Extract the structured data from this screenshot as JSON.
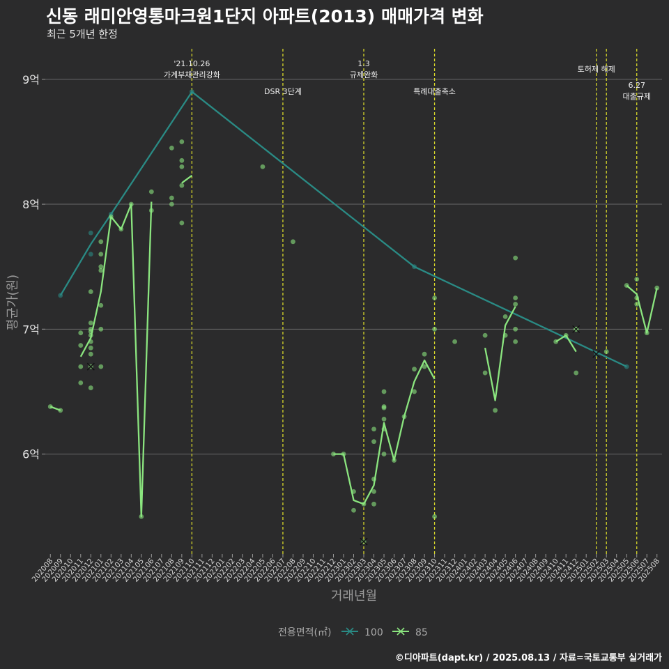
{
  "header": {
    "title": "신동 래미안영통마크원1단지 아파트(2013) 매매가격 변화",
    "subtitle": "최근 5개년 한정"
  },
  "caption": "©디아파트(dapt.kr) / 2025.08.13 / 자료=국토교통부 실거래가",
  "colors": {
    "background": "#2b2b2c",
    "series_100": "#2a8b85",
    "series_85": "#8be57f",
    "event_line": "#d7d72a",
    "grid": "#6a6a6a"
  },
  "chart_data": {
    "type": "line",
    "xlabel": "거래년월",
    "ylabel": "평균가(원)",
    "ylim": [
      5.2,
      9.3
    ],
    "yticks": [
      {
        "value": 6,
        "label": "6억"
      },
      {
        "value": 7,
        "label": "7억"
      },
      {
        "value": 8,
        "label": "8억"
      },
      {
        "value": 9,
        "label": "9억"
      }
    ],
    "x_categories": [
      "202008",
      "202009",
      "202010",
      "202011",
      "202012",
      "202101",
      "202102",
      "202103",
      "202104",
      "202105",
      "202106",
      "202107",
      "202108",
      "202109",
      "202110",
      "202111",
      "202112",
      "202201",
      "202202",
      "202203",
      "202204",
      "202205",
      "202206",
      "202207",
      "202208",
      "202209",
      "202210",
      "202211",
      "202212",
      "202301",
      "202302",
      "202303",
      "202304",
      "202305",
      "202306",
      "202307",
      "202308",
      "202309",
      "202310",
      "202311",
      "202312",
      "202401",
      "202402",
      "202403",
      "202404",
      "202405",
      "202406",
      "202407",
      "202408",
      "202409",
      "202410",
      "202411",
      "202412",
      "202501",
      "202502",
      "202503",
      "202504",
      "202505",
      "202506",
      "202507",
      "202508"
    ],
    "legend": {
      "title": "전용면적(㎡)",
      "position": "bottom",
      "entries": [
        "100",
        "85"
      ]
    },
    "series": [
      {
        "name": "100",
        "line": [
          [
            "202009",
            7.27
          ],
          [
            "202012",
            7.68
          ],
          [
            "202102",
            7.92
          ],
          [
            "202110",
            8.9
          ],
          [
            "202308",
            7.5
          ],
          [
            "202411",
            6.93
          ],
          [
            "202505",
            6.7
          ]
        ],
        "points": [
          [
            "202009",
            7.27
          ],
          [
            "202012",
            7.77
          ],
          [
            "202012",
            7.6
          ],
          [
            "202102",
            7.92
          ],
          [
            "202110",
            8.9
          ],
          [
            "202308",
            7.5
          ],
          [
            "202505",
            6.7
          ]
        ],
        "cancelled": [
          [
            "202502",
            6.8
          ]
        ]
      },
      {
        "name": "85",
        "segments": [
          [
            [
              "202008",
              6.38
            ],
            [
              "202009",
              6.35
            ]
          ],
          [
            [
              "202011",
              6.78
            ],
            [
              "202012",
              6.93
            ],
            [
              "202101",
              7.3
            ],
            [
              "202102",
              7.9
            ],
            [
              "202103",
              7.8
            ],
            [
              "202104",
              8.0
            ],
            [
              "202105",
              5.5
            ],
            [
              "202106",
              8.02
            ]
          ],
          [
            [
              "202109",
              8.17
            ],
            [
              "202110",
              8.23
            ]
          ],
          [
            [
              "202212",
              6.0
            ],
            [
              "202301",
              6.0
            ],
            [
              "202302",
              5.63
            ],
            [
              "202303",
              5.6
            ],
            [
              "202304",
              5.75
            ],
            [
              "202305",
              6.25
            ],
            [
              "202306",
              5.95
            ],
            [
              "202307",
              6.3
            ],
            [
              "202308",
              6.58
            ],
            [
              "202309",
              6.75
            ],
            [
              "202310",
              6.6
            ]
          ],
          [
            [
              "202403",
              6.85
            ],
            [
              "202404",
              6.43
            ],
            [
              "202405",
              7.03
            ],
            [
              "202406",
              7.18
            ]
          ],
          [
            [
              "202410",
              6.9
            ],
            [
              "202411",
              6.95
            ],
            [
              "202412",
              6.82
            ]
          ],
          [
            [
              "202505",
              7.35
            ],
            [
              "202506",
              7.28
            ],
            [
              "202507",
              6.97
            ],
            [
              "202508",
              7.33
            ]
          ]
        ],
        "points": [
          [
            "202008",
            6.38
          ],
          [
            "202009",
            6.35
          ],
          [
            "202011",
            6.97
          ],
          [
            "202011",
            6.87
          ],
          [
            "202011",
            6.7
          ],
          [
            "202011",
            6.57
          ],
          [
            "202012",
            7.3
          ],
          [
            "202012",
            7.05
          ],
          [
            "202012",
            7.0
          ],
          [
            "202012",
            6.98
          ],
          [
            "202012",
            6.95
          ],
          [
            "202012",
            6.9
          ],
          [
            "202012",
            6.85
          ],
          [
            "202012",
            6.8
          ],
          [
            "202012",
            6.53
          ],
          [
            "202101",
            7.7
          ],
          [
            "202101",
            7.6
          ],
          [
            "202101",
            7.5
          ],
          [
            "202101",
            7.47
          ],
          [
            "202101",
            7.19
          ],
          [
            "202101",
            7.0
          ],
          [
            "202101",
            6.7
          ],
          [
            "202102",
            7.9
          ],
          [
            "202103",
            7.8
          ],
          [
            "202104",
            8.0
          ],
          [
            "202105",
            5.5
          ],
          [
            "202106",
            8.1
          ],
          [
            "202106",
            7.95
          ],
          [
            "202108",
            8.45
          ],
          [
            "202108",
            8.05
          ],
          [
            "202108",
            8.0
          ],
          [
            "202109",
            8.5
          ],
          [
            "202109",
            8.35
          ],
          [
            "202109",
            8.3
          ],
          [
            "202109",
            8.15
          ],
          [
            "202109",
            7.85
          ],
          [
            "202205",
            8.3
          ],
          [
            "202208",
            7.7
          ],
          [
            "202212",
            6.0
          ],
          [
            "202301",
            6.0
          ],
          [
            "202302",
            5.7
          ],
          [
            "202302",
            5.55
          ],
          [
            "202303",
            5.6
          ],
          [
            "202304",
            6.2
          ],
          [
            "202304",
            6.1
          ],
          [
            "202304",
            5.8
          ],
          [
            "202304",
            5.7
          ],
          [
            "202304",
            5.6
          ],
          [
            "202305",
            6.5
          ],
          [
            "202305",
            6.38
          ],
          [
            "202305",
            6.37
          ],
          [
            "202305",
            6.28
          ],
          [
            "202305",
            6.2
          ],
          [
            "202305",
            6.0
          ],
          [
            "202306",
            5.95
          ],
          [
            "202307",
            6.3
          ],
          [
            "202308",
            6.68
          ],
          [
            "202308",
            6.5
          ],
          [
            "202309",
            6.8
          ],
          [
            "202309",
            6.7
          ],
          [
            "202310",
            7.25
          ],
          [
            "202310",
            7.0
          ],
          [
            "202310",
            5.5
          ],
          [
            "202312",
            6.9
          ],
          [
            "202403",
            6.95
          ],
          [
            "202403",
            6.65
          ],
          [
            "202404",
            6.35
          ],
          [
            "202405",
            7.1
          ],
          [
            "202405",
            6.95
          ],
          [
            "202406",
            7.57
          ],
          [
            "202406",
            7.25
          ],
          [
            "202406",
            7.2
          ],
          [
            "202406",
            7.0
          ],
          [
            "202406",
            6.9
          ],
          [
            "202410",
            6.9
          ],
          [
            "202411",
            6.95
          ],
          [
            "202412",
            7.0
          ],
          [
            "202412",
            6.65
          ],
          [
            "202503",
            6.82
          ],
          [
            "202505",
            7.35
          ],
          [
            "202506",
            7.4
          ],
          [
            "202506",
            7.25
          ],
          [
            "202506",
            7.2
          ],
          [
            "202507",
            6.97
          ],
          [
            "202508",
            7.33
          ]
        ],
        "cancelled": [
          [
            "202012",
            6.7
          ],
          [
            "202303",
            5.3
          ],
          [
            "202412",
            7.0
          ]
        ]
      }
    ],
    "events": [
      {
        "x": "202110",
        "label": "'21.10.26\n가계부채관리강화",
        "row": "upper"
      },
      {
        "x": "202207",
        "label": "DSR 3단계",
        "row": "lower"
      },
      {
        "x": "202303",
        "label": "1.3\n규제완화",
        "row": "upper"
      },
      {
        "x": "202310",
        "label": "특례대출축소",
        "row": "lower"
      },
      {
        "x": "202502",
        "label": "토허제 해제",
        "row": "upper"
      },
      {
        "x": "202503",
        "label": "",
        "row": "upper"
      },
      {
        "x": "202506",
        "label": "6.27\n대출규제",
        "row": "lower"
      }
    ]
  }
}
